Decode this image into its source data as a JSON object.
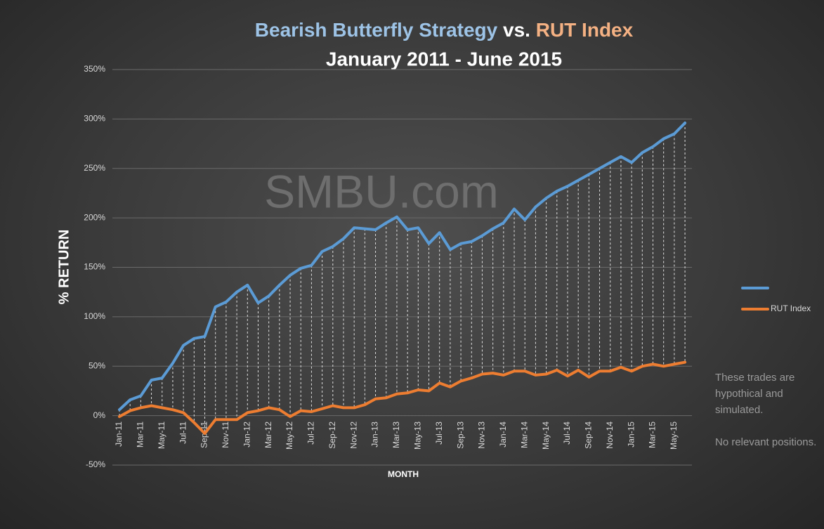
{
  "chart_data": {
    "type": "line",
    "title_parts": [
      "Bearish Butterfly Strategy",
      "vs.",
      "RUT Index"
    ],
    "subtitle": "January 2011 - June 2015",
    "watermark": "SMBU.com",
    "y_label": "% RETURN",
    "x_label": "MONTH",
    "note": [
      "These trades are hypothical and simulated.",
      "No relevant positions."
    ],
    "categories": [
      "Jan-11",
      null,
      "Mar-11",
      null,
      "May-11",
      null,
      "Jul-11",
      null,
      "Sep-11",
      null,
      "Nov-11",
      null,
      "Jan-12",
      null,
      "Mar-12",
      null,
      "May-12",
      null,
      "Jul-12",
      null,
      "Sep-12",
      null,
      "Nov-12",
      null,
      "Jan-13",
      null,
      "Mar-13",
      null,
      "May-13",
      null,
      "Jul-13",
      null,
      "Sep-13",
      null,
      "Nov-13",
      null,
      "Jan-14",
      null,
      "Mar-14",
      null,
      "May-14",
      null,
      "Jul-14",
      null,
      "Sep-14",
      null,
      "Nov-14",
      null,
      "Jan-15",
      null,
      "Mar-15",
      null,
      "May-15",
      null
    ],
    "series": [
      {
        "color": "#5b9bd5",
        "values": [
          6,
          16,
          20,
          36,
          38,
          53,
          71,
          78,
          80,
          110,
          115,
          125,
          132,
          114,
          121,
          132,
          142,
          149,
          152,
          166,
          171,
          179,
          190,
          189,
          188,
          195,
          201,
          188,
          190,
          174,
          185,
          168,
          174,
          176,
          182,
          189,
          195,
          209,
          198,
          211,
          220,
          227,
          232,
          238,
          244,
          250,
          256,
          262,
          256,
          266,
          272,
          280,
          285,
          296
        ]
      },
      {
        "name": "RUT Index",
        "color": "#ed7d31",
        "values": [
          -1,
          5,
          8,
          10,
          8,
          6,
          3,
          -7,
          -18,
          -4,
          -4,
          -4,
          3,
          5,
          8,
          6,
          -1,
          5,
          4,
          7,
          10,
          8,
          8,
          11,
          17,
          18,
          22,
          23,
          26,
          25,
          33,
          29,
          35,
          38,
          42,
          43,
          41,
          45,
          45,
          41,
          42,
          46,
          40,
          46,
          39,
          45,
          45,
          49,
          45,
          50,
          52,
          50,
          52,
          54
        ]
      }
    ],
    "ylim": [
      -50,
      350
    ],
    "yticks": [
      {
        "value": -50,
        "label": "-50%"
      },
      {
        "value": 0,
        "label": "0%"
      },
      {
        "value": 50,
        "label": "50%"
      },
      {
        "value": 100,
        "label": "100%"
      },
      {
        "value": 150,
        "label": "150%"
      },
      {
        "value": 200,
        "label": "200%"
      },
      {
        "value": 250,
        "label": "250%"
      },
      {
        "value": 300,
        "label": "300%"
      },
      {
        "value": 350,
        "label": "350%"
      }
    ],
    "grid": true,
    "high_low_lines": true,
    "legend": "right"
  }
}
